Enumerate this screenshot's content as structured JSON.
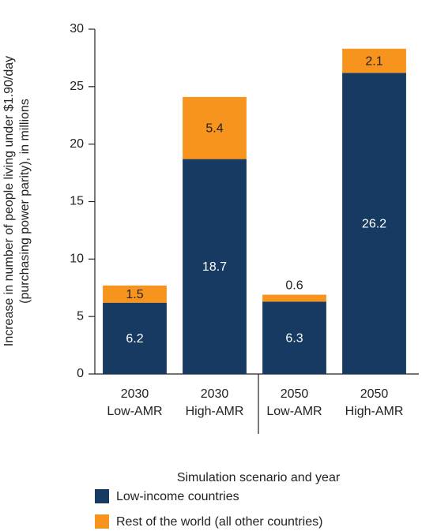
{
  "chart_data": {
    "type": "stacked_bar",
    "ylabel": [
      "Increase in number of people living under $1.90/day",
      "(purchasing power parity), in millions"
    ],
    "xlabel": "Simulation scenario and year",
    "categories": [
      "2030 Low-AMR",
      "2030 High-AMR",
      "2050 Low-AMR",
      "2050 High-AMR"
    ],
    "series": [
      {
        "name": "Low-income countries",
        "color": "#163a61",
        "values": [
          6.2,
          18.7,
          6.3,
          26.2
        ]
      },
      {
        "name": "Rest of the world (all other countries)",
        "color": "#f7941d",
        "values": [
          1.5,
          5.4,
          0.6,
          2.1
        ]
      }
    ],
    "ylim": [
      0,
      30
    ],
    "yticks": [
      0,
      5,
      10,
      15,
      20,
      25,
      30
    ]
  }
}
